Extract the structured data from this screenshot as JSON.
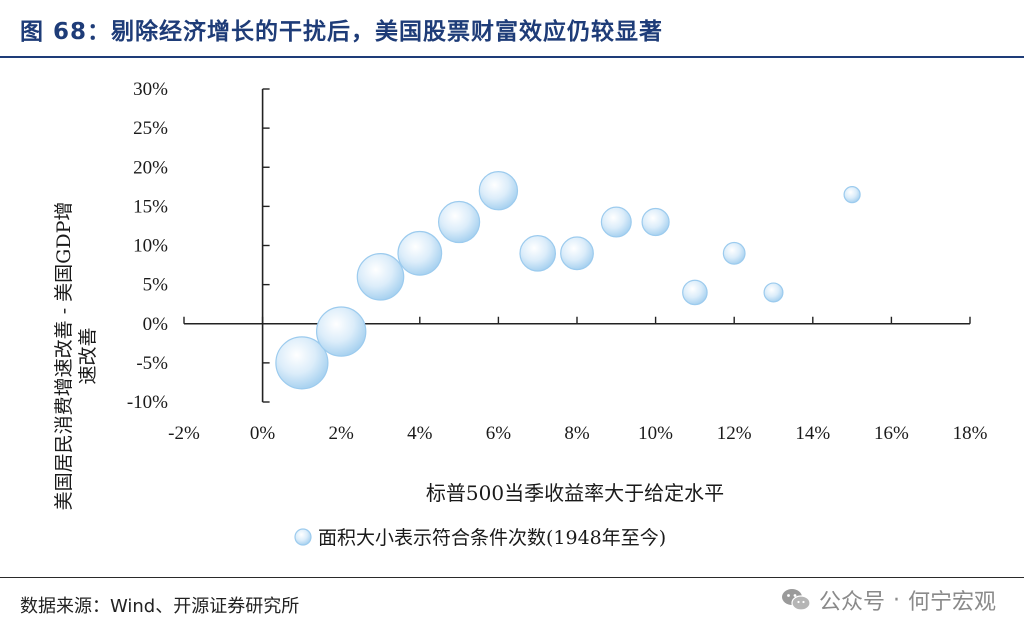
{
  "figure": {
    "title": "图 68：剔除经济增长的干扰后，美国股票财富效应仍较显著"
  },
  "chart_data": {
    "type": "scatter",
    "subtype": "bubble",
    "xlabel": "标普500当季收益率大于给定水平",
    "ylabel": "美国居民消费增速改善 - 美国GDP增速改善",
    "xlim": [
      -0.02,
      0.18
    ],
    "ylim": [
      -0.1,
      0.3
    ],
    "xticks": [
      "-2%",
      "0%",
      "2%",
      "4%",
      "6%",
      "8%",
      "10%",
      "12%",
      "14%",
      "16%",
      "18%"
    ],
    "yticks": [
      "30%",
      "25%",
      "20%",
      "15%",
      "10%",
      "5%",
      "0%",
      "-5%",
      "-10%"
    ],
    "grid": false,
    "legend_position": "bottom-center",
    "series": [
      {
        "name": "面积大小表示符合条件次数(1948年至今)",
        "color": "#b3d8f2",
        "points": [
          {
            "x": 0.01,
            "y": -0.05
          },
          {
            "x": 0.02,
            "y": -0.01
          },
          {
            "x": 0.03,
            "y": 0.06
          },
          {
            "x": 0.04,
            "y": 0.09
          },
          {
            "x": 0.05,
            "y": 0.13
          },
          {
            "x": 0.06,
            "y": 0.17
          },
          {
            "x": 0.07,
            "y": 0.09
          },
          {
            "x": 0.08,
            "y": 0.09
          },
          {
            "x": 0.09,
            "y": 0.13
          },
          {
            "x": 0.1,
            "y": 0.13
          },
          {
            "x": 0.11,
            "y": 0.04
          },
          {
            "x": 0.12,
            "y": 0.09
          },
          {
            "x": 0.13,
            "y": 0.04
          },
          {
            "x": 0.15,
            "y": 0.165
          }
        ]
      }
    ]
  },
  "footer": {
    "source": "数据来源：Wind、开源证券研究所",
    "watermark_account": "公众号",
    "watermark_separator": "·",
    "watermark_name": "何宁宏观"
  }
}
